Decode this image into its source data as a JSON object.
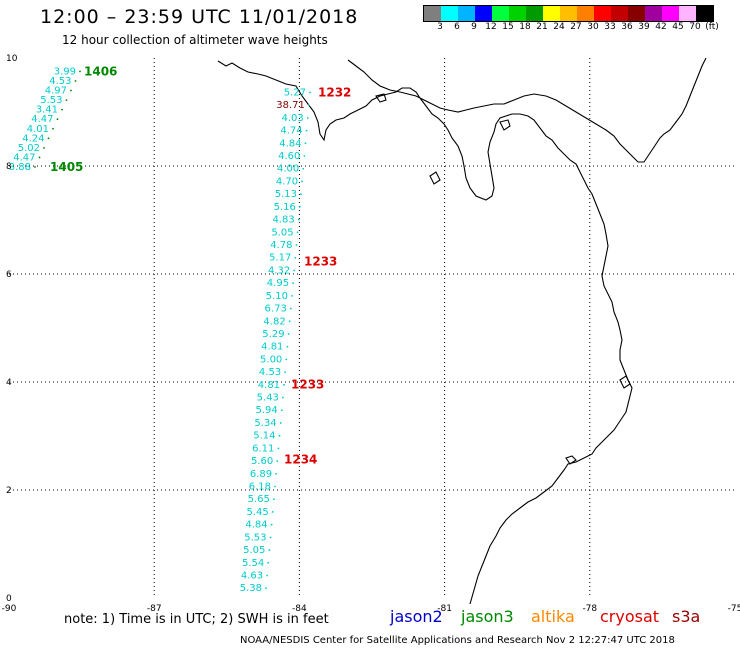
{
  "header": {
    "title": "12:00 – 23:59 UTC 11/01/2018",
    "subtitle": "12 hour collection of altimeter wave heights"
  },
  "legend": {
    "colors": [
      "#7f7f7f",
      "#00ffff",
      "#00b4ff",
      "#0000ff",
      "#00ff3c",
      "#00d200",
      "#009b00",
      "#ffff00",
      "#ffbe00",
      "#ff7f00",
      "#ff0000",
      "#c30000",
      "#870000",
      "#a000a0",
      "#ff00ff",
      "#ffb4ff",
      "#000000"
    ],
    "labels": [
      "3",
      "6",
      "9",
      "12",
      "15",
      "18",
      "21",
      "24",
      "27",
      "30",
      "33",
      "36",
      "39",
      "42",
      "45",
      "70",
      "(ft)"
    ]
  },
  "axes": {
    "x_ticks": [
      "-90",
      "-87",
      "-84",
      "-81",
      "-78",
      "-75"
    ],
    "y_ticks": [
      "0",
      "2",
      "4",
      "6",
      "8",
      "10"
    ]
  },
  "tracks": [
    {
      "satellite": "jason3",
      "color": "#00cccc",
      "label_color": "#008800",
      "values": [
        "3.99",
        "4.53",
        "4.97",
        "5.53",
        "3.41",
        "4.47",
        "4.01",
        "4.24",
        "5.02",
        "4.47",
        "3.88"
      ],
      "pass_labels": [
        {
          "text": "1406",
          "lat": 9.77
        },
        {
          "text": "1405",
          "lat": 8.0
        }
      ]
    },
    {
      "satellite": "cryosat",
      "color": "#00cccc",
      "label_color": "#dd0000",
      "values": [
        "5.27",
        "38.71",
        "4.03",
        "4.74",
        "4.84",
        "4.60",
        "4.00",
        "4.70",
        "5.13",
        "5.16",
        "4.83",
        "5.05",
        "4.78",
        "5.17",
        "4.32",
        "4.95",
        "5.10",
        "6.73",
        "4.82",
        "5.29",
        "4.81",
        "5.00",
        "4.53",
        "4.81",
        "5.43",
        "5.94",
        "5.34",
        "5.14",
        "6.11",
        "5.60",
        "6.89",
        "6.18",
        "5.65",
        "5.45",
        "4.84",
        "5.53",
        "5.05",
        "5.54",
        "4.63",
        "5.38"
      ],
      "pass_labels": [
        {
          "text": "1232",
          "lat": 9.38
        },
        {
          "text": "1233",
          "lat": 6.25
        },
        {
          "text": "1233",
          "lat": 3.97
        },
        {
          "text": "1234",
          "lat": 2.58
        }
      ]
    }
  ],
  "footer": {
    "note": "note:  1) Time is in UTC;  2) SWH is in feet",
    "satellites": [
      {
        "name": "jason2",
        "color": "#0000cc"
      },
      {
        "name": "jason3",
        "color": "#008800"
      },
      {
        "name": "altika",
        "color": "#ff8800"
      },
      {
        "name": "cryosat",
        "color": "#dd0000"
      },
      {
        "name": "s3a",
        "color": "#990000"
      }
    ],
    "credit": "NOAA/NESDIS Center for Satellite Applications and Research    Nov  2 12:27:47 UTC 2018"
  }
}
